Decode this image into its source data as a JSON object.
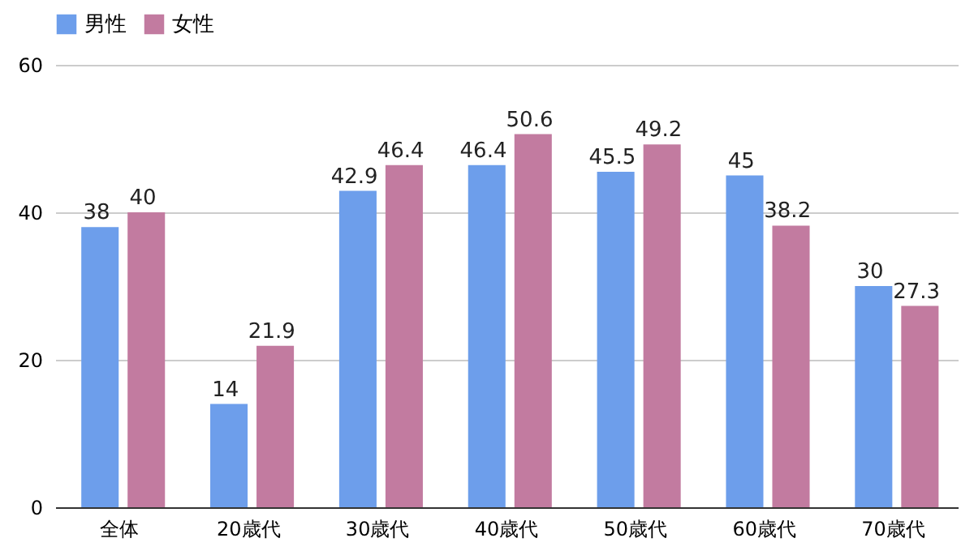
{
  "chart_data": {
    "type": "bar",
    "categories": [
      "全体",
      "20歳代",
      "30歳代",
      "40歳代",
      "50歳代",
      "60歳代",
      "70歳代"
    ],
    "series": [
      {
        "name": "男性",
        "color": "#6d9eeb",
        "values": [
          38,
          14,
          42.9,
          46.4,
          45.5,
          45,
          30
        ]
      },
      {
        "name": "女性",
        "color": "#c27ba0",
        "values": [
          40,
          21.9,
          46.4,
          50.6,
          49.2,
          38.2,
          27.3
        ]
      }
    ],
    "ylim": [
      0,
      60
    ],
    "yticks": [
      0,
      20,
      40,
      60
    ],
    "grid": "y",
    "legend": "top",
    "data_labels": true
  }
}
